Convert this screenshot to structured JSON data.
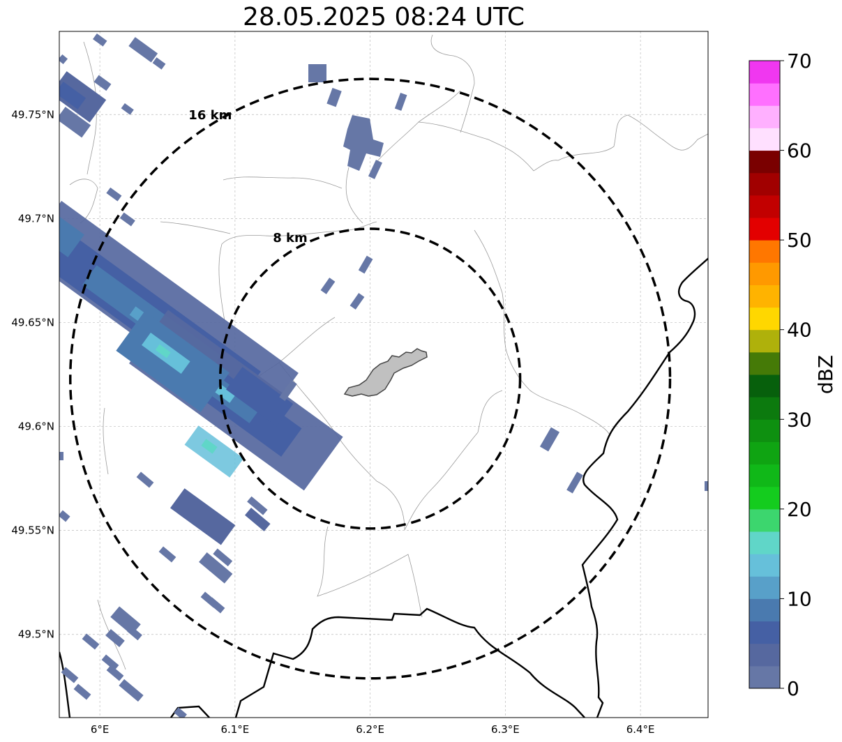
{
  "title": "28.05.2025 08:24 UTC",
  "map": {
    "lon_range": [
      5.97,
      6.45
    ],
    "lat_range": [
      49.46,
      49.79
    ],
    "center": {
      "lon": 6.2,
      "lat": 49.623
    },
    "lon_ticks": [
      {
        "value": 6.0,
        "label": "6°E"
      },
      {
        "value": 6.1,
        "label": "6.1°E"
      },
      {
        "value": 6.2,
        "label": "6.2°E"
      },
      {
        "value": 6.3,
        "label": "6.3°E"
      },
      {
        "value": 6.4,
        "label": "6.4°E"
      }
    ],
    "lat_ticks": [
      {
        "value": 49.75,
        "label": "49.75°N"
      },
      {
        "value": 49.7,
        "label": "49.7°N"
      },
      {
        "value": 49.65,
        "label": "49.65°N"
      },
      {
        "value": 49.6,
        "label": "49.6°N"
      },
      {
        "value": 49.55,
        "label": "49.55°N"
      },
      {
        "value": 49.5,
        "label": "49.5°N"
      }
    ],
    "range_rings": [
      {
        "km": 8,
        "label": "8 km"
      },
      {
        "km": 16,
        "label": "16 km"
      }
    ],
    "gridlines": true,
    "colors": {
      "ring": "#000000",
      "border": "#000000",
      "admin": "#9a9a9a",
      "city_fill": "#c0c0c0",
      "city_edge": "#444444"
    }
  },
  "colorbar": {
    "label": "dBZ",
    "min": 0,
    "max": 70,
    "step": 2.5,
    "tick_values": [
      0,
      10,
      20,
      30,
      40,
      50,
      60,
      70
    ],
    "tick_labels": [
      "0",
      "10",
      "20",
      "30",
      "40",
      "50",
      "60",
      "70"
    ],
    "colors": [
      "#6677a6",
      "#56689f",
      "#4560a4",
      "#4a7aaf",
      "#58a0c9",
      "#66c0da",
      "#60d6c8",
      "#3cd66e",
      "#14cc1e",
      "#10b818",
      "#0fa412",
      "#0e9010",
      "#0c7a0e",
      "#07600c",
      "#457a07",
      "#afb10b",
      "#ffd700",
      "#ffb300",
      "#ff9900",
      "#ff7700",
      "#e30000",
      "#c20000",
      "#a10000",
      "#7a0000",
      "#ffe0ff",
      "#ffb0ff",
      "#ff70ff",
      "#f037f0"
    ]
  }
}
